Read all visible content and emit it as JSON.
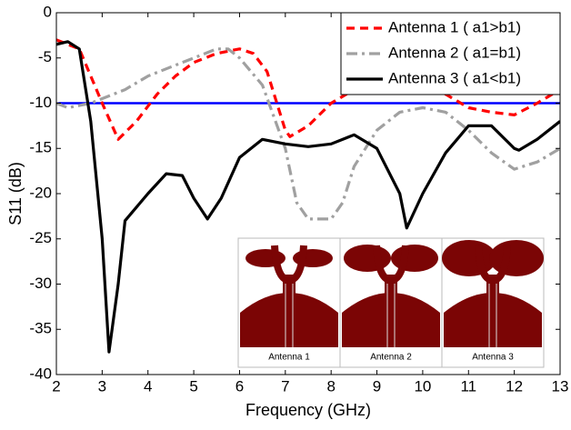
{
  "chart_data": {
    "type": "line",
    "xlabel": "Frequency (GHz)",
    "ylabel": "S11 (dB)",
    "xlim": [
      2,
      13
    ],
    "xticks": [
      2,
      3,
      4,
      5,
      6,
      7,
      8,
      9,
      10,
      11,
      12,
      13
    ],
    "ylim": [
      -40,
      0
    ],
    "yticks": [
      -40,
      -35,
      -30,
      -25,
      -20,
      -15,
      -10,
      -5,
      0
    ],
    "legend": "top-right",
    "series": [
      {
        "name": "Antenna 1 ( a1>b1)",
        "color": "#ff0000",
        "dash": "9,6",
        "x": [
          2,
          2.5,
          3,
          3.35,
          3.75,
          4.2,
          4.6,
          5,
          5.5,
          6,
          6.3,
          6.6,
          7,
          7.1,
          7.5,
          8,
          8.5,
          9,
          9.5,
          10,
          10.5,
          11,
          11.5,
          12,
          12.5,
          13
        ],
        "values": [
          -3,
          -4,
          -10,
          -14,
          -12,
          -9,
          -7,
          -5.5,
          -4.5,
          -4,
          -4.5,
          -6.5,
          -13,
          -13.7,
          -12.5,
          -10,
          -8.5,
          -8,
          -7.8,
          -8,
          -9,
          -10.5,
          -11,
          -11.3,
          -10,
          -8.5
        ]
      },
      {
        "name": "Antenna 2 ( a1=b1)",
        "color": "#a0a0a0",
        "dash": "12,5,3,5",
        "x": [
          2,
          2.25,
          2.75,
          3,
          3.5,
          4,
          4.5,
          5,
          5.5,
          5.75,
          6,
          6.5,
          7,
          7.25,
          7.5,
          8,
          8.25,
          8.5,
          9,
          9.5,
          10,
          10.5,
          11,
          11.5,
          12,
          12.5,
          13
        ],
        "values": [
          -10,
          -10.5,
          -10,
          -9.5,
          -8.5,
          -7,
          -6,
          -5,
          -4,
          -4,
          -5,
          -8,
          -15,
          -21,
          -22.8,
          -22.8,
          -21,
          -17,
          -13,
          -11,
          -10.5,
          -11,
          -13,
          -15.5,
          -17.3,
          -16.5,
          -15
        ]
      },
      {
        "name": "Antenna 3 ( a1<b1)",
        "color": "#000000",
        "dash": "",
        "x": [
          2,
          2.25,
          2.5,
          2.75,
          3,
          3.15,
          3.35,
          3.5,
          4,
          4.4,
          4.75,
          5,
          5.3,
          5.6,
          6,
          6.5,
          7,
          7.5,
          8,
          8.5,
          9,
          9.5,
          9.65,
          10,
          10.5,
          11,
          11.5,
          12,
          12.1,
          12.5,
          13
        ],
        "values": [
          -3.5,
          -3.2,
          -4,
          -12,
          -25,
          -37.5,
          -30,
          -23,
          -20,
          -17.8,
          -18,
          -20.5,
          -22.8,
          -20.5,
          -16,
          -14,
          -14.5,
          -14.8,
          -14.5,
          -13.5,
          -15,
          -20,
          -23.8,
          -20,
          -15.5,
          -12.5,
          -12.5,
          -15,
          -15.2,
          -14,
          -12
        ]
      }
    ],
    "hlines": [
      {
        "y": -10,
        "color": "#0000ff"
      }
    ],
    "inset": {
      "labels": [
        "Antenna 1",
        "Antenna 2",
        "Antenna 3"
      ]
    }
  }
}
